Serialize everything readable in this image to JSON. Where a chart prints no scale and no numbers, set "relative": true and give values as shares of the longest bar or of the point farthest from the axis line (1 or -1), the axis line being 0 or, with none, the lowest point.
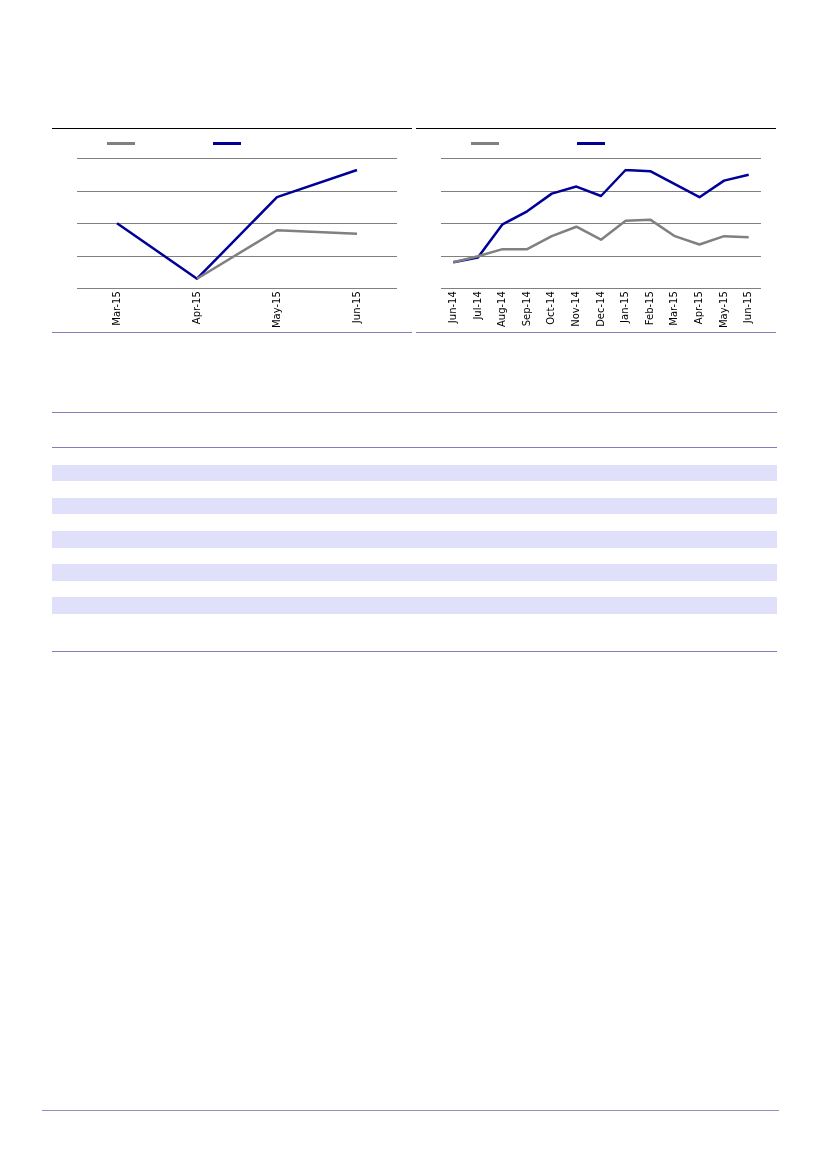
{
  "chart_data": [
    {
      "type": "line",
      "relative": true,
      "categories": [
        "Mar-15",
        "Apr-15",
        "May-15",
        "Jun-15"
      ],
      "series": [
        {
          "color": "#808080",
          "values": [
            null,
            0.08,
            0.49,
            0.46
          ]
        },
        {
          "color": "#000099",
          "values": [
            0.55,
            0.08,
            0.77,
            1
          ]
        }
      ],
      "marker": "none",
      "line_style": "solid"
    },
    {
      "type": "line",
      "relative": true,
      "categories": [
        "Jun-14",
        "Jul-14",
        "Aug-14",
        "Sep-14",
        "Oct-14",
        "Nov-14",
        "Dec-14",
        "Jan-15",
        "Feb-15",
        "Mar-15",
        "Apr-15",
        "May-15",
        "Jun-15"
      ],
      "series": [
        {
          "color": "#808080",
          "values": [
            0.22,
            0.27,
            0.33,
            0.33,
            0.44,
            0.52,
            0.41,
            0.57,
            0.58,
            0.44,
            0.37,
            0.44,
            0.43
          ]
        },
        {
          "color": "#000099",
          "values": [
            0.22,
            0.26,
            0.54,
            0.65,
            0.8,
            0.86,
            0.78,
            1,
            0.99,
            0.88,
            0.77,
            0.91,
            0.96
          ]
        }
      ],
      "marker": "none",
      "line_style": "solid"
    }
  ]
}
